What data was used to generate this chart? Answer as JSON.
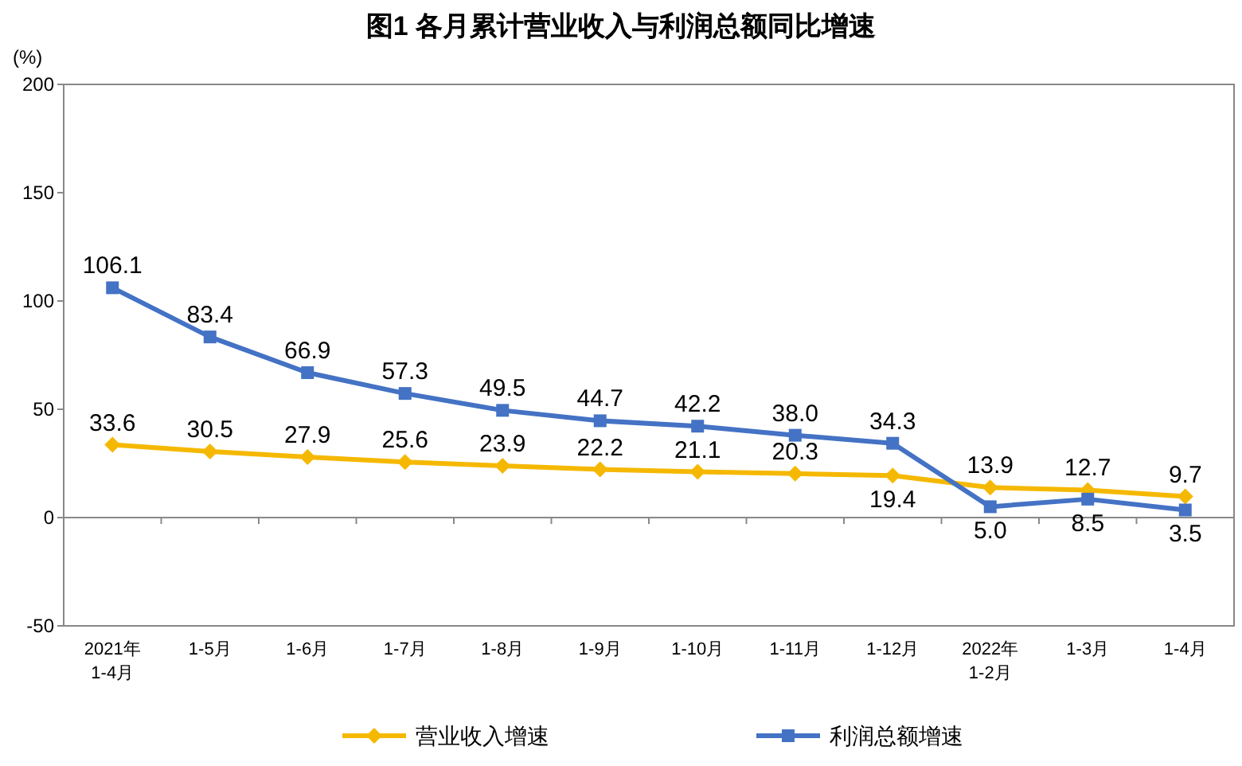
{
  "chart_data": {
    "type": "line",
    "title": "图1  各月累计营业收入与利润总额同比增速",
    "ylabel": "(%)",
    "categories": [
      "2021年\n1-4月",
      "1-5月",
      "1-6月",
      "1-7月",
      "1-8月",
      "1-9月",
      "1-10月",
      "1-11月",
      "1-12月",
      "2022年\n1-2月",
      "1-3月",
      "1-4月"
    ],
    "series": [
      {
        "name": "营业收入增速",
        "color": "#f5b800",
        "marker": "diamond",
        "values": [
          33.6,
          30.5,
          27.9,
          25.6,
          23.9,
          22.2,
          21.1,
          20.3,
          19.4,
          13.9,
          12.7,
          9.7
        ],
        "value_labels": [
          "33.6",
          "30.5",
          "27.9",
          "25.6",
          "23.9",
          "22.2",
          "21.1",
          "20.3",
          "19.4",
          "13.9",
          "12.7",
          "9.7"
        ]
      },
      {
        "name": "利润总额增速",
        "color": "#4472c4",
        "marker": "square",
        "values": [
          106.1,
          83.4,
          66.9,
          57.3,
          49.5,
          44.7,
          42.2,
          38.0,
          34.3,
          5.0,
          8.5,
          3.5
        ],
        "value_labels": [
          "106.1",
          "83.4",
          "66.9",
          "57.3",
          "49.5",
          "44.7",
          "42.2",
          "38.0",
          "34.3",
          "5.0",
          "8.5",
          "3.5"
        ]
      }
    ],
    "ylim": [
      -50,
      200
    ],
    "yticks": [
      -50,
      0,
      50,
      100,
      150,
      200
    ],
    "legend": "bottom",
    "line_style": "solid"
  }
}
